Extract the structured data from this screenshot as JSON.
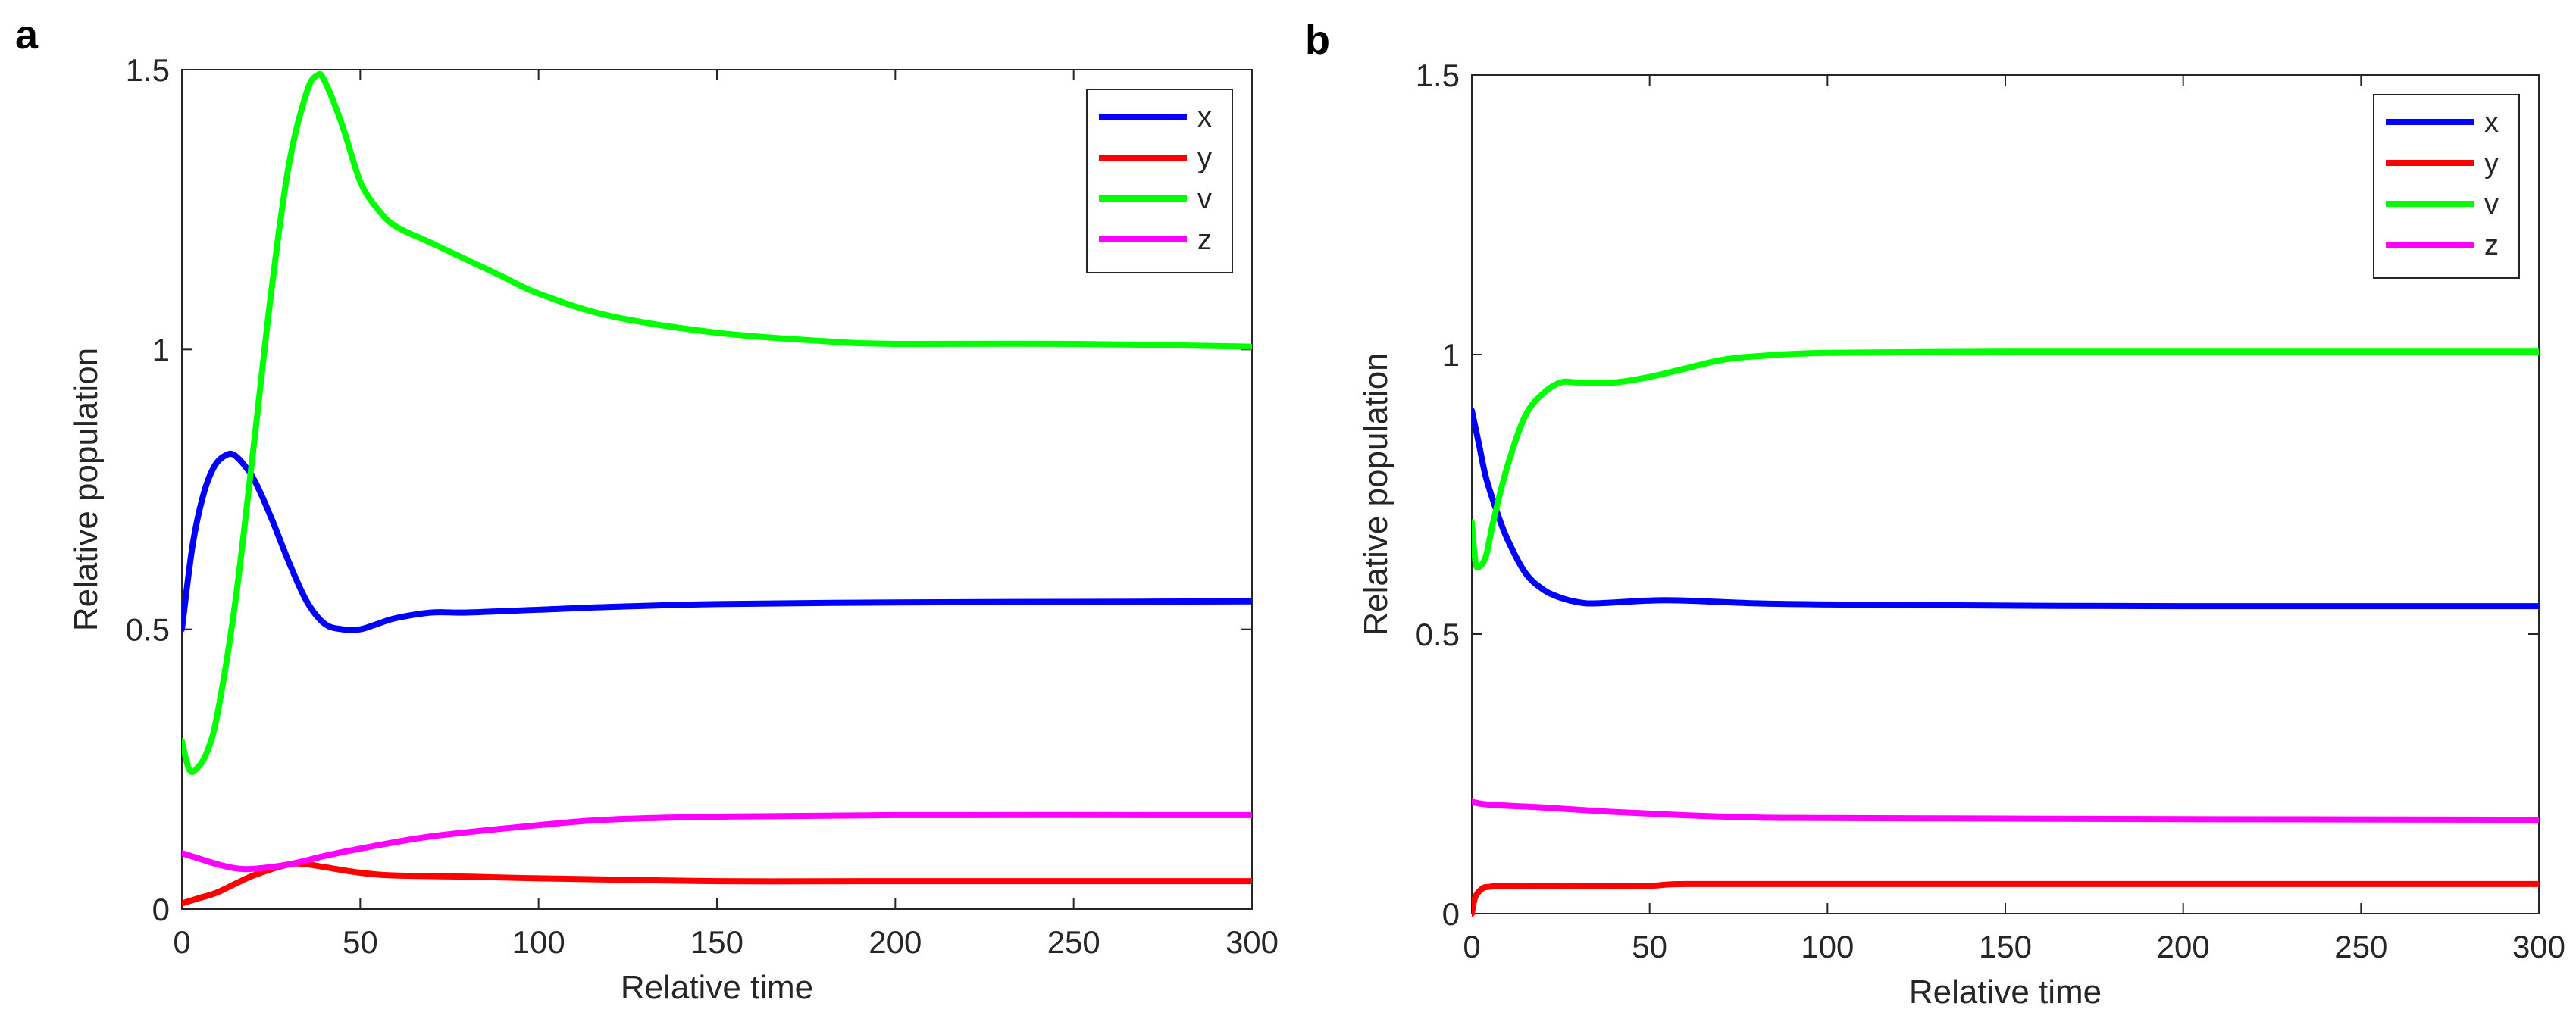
{
  "colors": {
    "x": "#0000ff",
    "y": "#ff0000",
    "v": "#00ff00",
    "z": "#ff00ff",
    "axis": "#262626",
    "background": "#ffffff"
  },
  "chart_data": [
    {
      "type": "line",
      "panel_label": "a",
      "xlabel": "Relative time",
      "ylabel": "Relative population",
      "xlim": [
        0,
        300
      ],
      "ylim": [
        0,
        1.5
      ],
      "xticks": [
        0,
        50,
        100,
        150,
        200,
        250,
        300
      ],
      "yticks": [
        0,
        0.5,
        1,
        1.5
      ],
      "xtick_labels": [
        "0",
        "50",
        "100",
        "150",
        "200",
        "250",
        "300"
      ],
      "ytick_labels": [
        "0",
        "0.5",
        "1",
        "1.5"
      ],
      "grid": false,
      "legend_position": "top-right",
      "series": [
        {
          "name": "x",
          "color_key": "x",
          "points": [
            [
              0,
              0.5
            ],
            [
              3,
              0.65
            ],
            [
              6,
              0.74
            ],
            [
              9,
              0.79
            ],
            [
              12,
              0.81
            ],
            [
              15,
              0.81
            ],
            [
              20,
              0.77
            ],
            [
              25,
              0.7
            ],
            [
              30,
              0.62
            ],
            [
              35,
              0.55
            ],
            [
              40,
              0.51
            ],
            [
              45,
              0.5
            ],
            [
              50,
              0.5
            ],
            [
              55,
              0.51
            ],
            [
              60,
              0.52
            ],
            [
              70,
              0.53
            ],
            [
              80,
              0.53
            ],
            [
              100,
              0.535
            ],
            [
              120,
              0.54
            ],
            [
              150,
              0.545
            ],
            [
              200,
              0.548
            ],
            [
              250,
              0.549
            ],
            [
              300,
              0.55
            ]
          ]
        },
        {
          "name": "y",
          "color_key": "y",
          "points": [
            [
              0,
              0.01
            ],
            [
              5,
              0.02
            ],
            [
              10,
              0.03
            ],
            [
              20,
              0.06
            ],
            [
              30,
              0.08
            ],
            [
              35,
              0.08
            ],
            [
              40,
              0.075
            ],
            [
              50,
              0.065
            ],
            [
              60,
              0.06
            ],
            [
              80,
              0.058
            ],
            [
              100,
              0.055
            ],
            [
              150,
              0.05
            ],
            [
              200,
              0.05
            ],
            [
              300,
              0.05
            ]
          ]
        },
        {
          "name": "v",
          "color_key": "v",
          "points": [
            [
              0,
              0.3
            ],
            [
              2,
              0.25
            ],
            [
              4,
              0.25
            ],
            [
              7,
              0.28
            ],
            [
              10,
              0.35
            ],
            [
              15,
              0.55
            ],
            [
              20,
              0.82
            ],
            [
              25,
              1.1
            ],
            [
              30,
              1.33
            ],
            [
              35,
              1.46
            ],
            [
              38,
              1.49
            ],
            [
              40,
              1.48
            ],
            [
              45,
              1.4
            ],
            [
              50,
              1.3
            ],
            [
              55,
              1.25
            ],
            [
              60,
              1.22
            ],
            [
              70,
              1.19
            ],
            [
              80,
              1.16
            ],
            [
              90,
              1.13
            ],
            [
              100,
              1.1
            ],
            [
              120,
              1.06
            ],
            [
              150,
              1.03
            ],
            [
              180,
              1.015
            ],
            [
              200,
              1.01
            ],
            [
              250,
              1.01
            ],
            [
              300,
              1.005
            ]
          ]
        },
        {
          "name": "z",
          "color_key": "z",
          "points": [
            [
              0,
              0.1
            ],
            [
              5,
              0.09
            ],
            [
              10,
              0.08
            ],
            [
              15,
              0.073
            ],
            [
              20,
              0.072
            ],
            [
              30,
              0.08
            ],
            [
              40,
              0.095
            ],
            [
              50,
              0.108
            ],
            [
              70,
              0.13
            ],
            [
              100,
              0.15
            ],
            [
              120,
              0.16
            ],
            [
              150,
              0.165
            ],
            [
              200,
              0.168
            ],
            [
              300,
              0.168
            ]
          ]
        }
      ]
    },
    {
      "type": "line",
      "panel_label": "b",
      "xlabel": "Relative time",
      "ylabel": "Relative population",
      "xlim": [
        0,
        300
      ],
      "ylim": [
        0,
        1.5
      ],
      "xticks": [
        0,
        50,
        100,
        150,
        200,
        250,
        300
      ],
      "yticks": [
        0,
        0.5,
        1,
        1.5
      ],
      "xtick_labels": [
        "0",
        "50",
        "100",
        "150",
        "200",
        "250",
        "300"
      ],
      "ytick_labels": [
        "0",
        "0.5",
        "1",
        "1.5"
      ],
      "grid": false,
      "legend_position": "top-right",
      "series": [
        {
          "name": "x",
          "color_key": "x",
          "points": [
            [
              0,
              0.9
            ],
            [
              2,
              0.84
            ],
            [
              4,
              0.78
            ],
            [
              7,
              0.72
            ],
            [
              10,
              0.67
            ],
            [
              15,
              0.61
            ],
            [
              20,
              0.58
            ],
            [
              25,
              0.565
            ],
            [
              30,
              0.557
            ],
            [
              35,
              0.555
            ],
            [
              50,
              0.56
            ],
            [
              60,
              0.56
            ],
            [
              80,
              0.555
            ],
            [
              100,
              0.553
            ],
            [
              150,
              0.551
            ],
            [
              200,
              0.55
            ],
            [
              300,
              0.55
            ]
          ]
        },
        {
          "name": "y",
          "color_key": "y",
          "points": [
            [
              0,
              0.0
            ],
            [
              1,
              0.03
            ],
            [
              3,
              0.045
            ],
            [
              5,
              0.048
            ],
            [
              10,
              0.05
            ],
            [
              30,
              0.05
            ],
            [
              50,
              0.05
            ],
            [
              60,
              0.053
            ],
            [
              100,
              0.053
            ],
            [
              200,
              0.053
            ],
            [
              300,
              0.053
            ]
          ]
        },
        {
          "name": "v",
          "color_key": "v",
          "points": [
            [
              0,
              0.7
            ],
            [
              1,
              0.63
            ],
            [
              2,
              0.62
            ],
            [
              4,
              0.64
            ],
            [
              6,
              0.7
            ],
            [
              10,
              0.8
            ],
            [
              15,
              0.89
            ],
            [
              20,
              0.93
            ],
            [
              25,
              0.95
            ],
            [
              30,
              0.95
            ],
            [
              40,
              0.95
            ],
            [
              50,
              0.96
            ],
            [
              60,
              0.975
            ],
            [
              70,
              0.99
            ],
            [
              80,
              0.997
            ],
            [
              100,
              1.003
            ],
            [
              150,
              1.005
            ],
            [
              200,
              1.005
            ],
            [
              300,
              1.005
            ]
          ]
        },
        {
          "name": "z",
          "color_key": "z",
          "points": [
            [
              0,
              0.2
            ],
            [
              5,
              0.195
            ],
            [
              20,
              0.19
            ],
            [
              40,
              0.182
            ],
            [
              60,
              0.176
            ],
            [
              80,
              0.172
            ],
            [
              100,
              0.171
            ],
            [
              150,
              0.17
            ],
            [
              200,
              0.169
            ],
            [
              300,
              0.168
            ]
          ]
        }
      ]
    }
  ]
}
